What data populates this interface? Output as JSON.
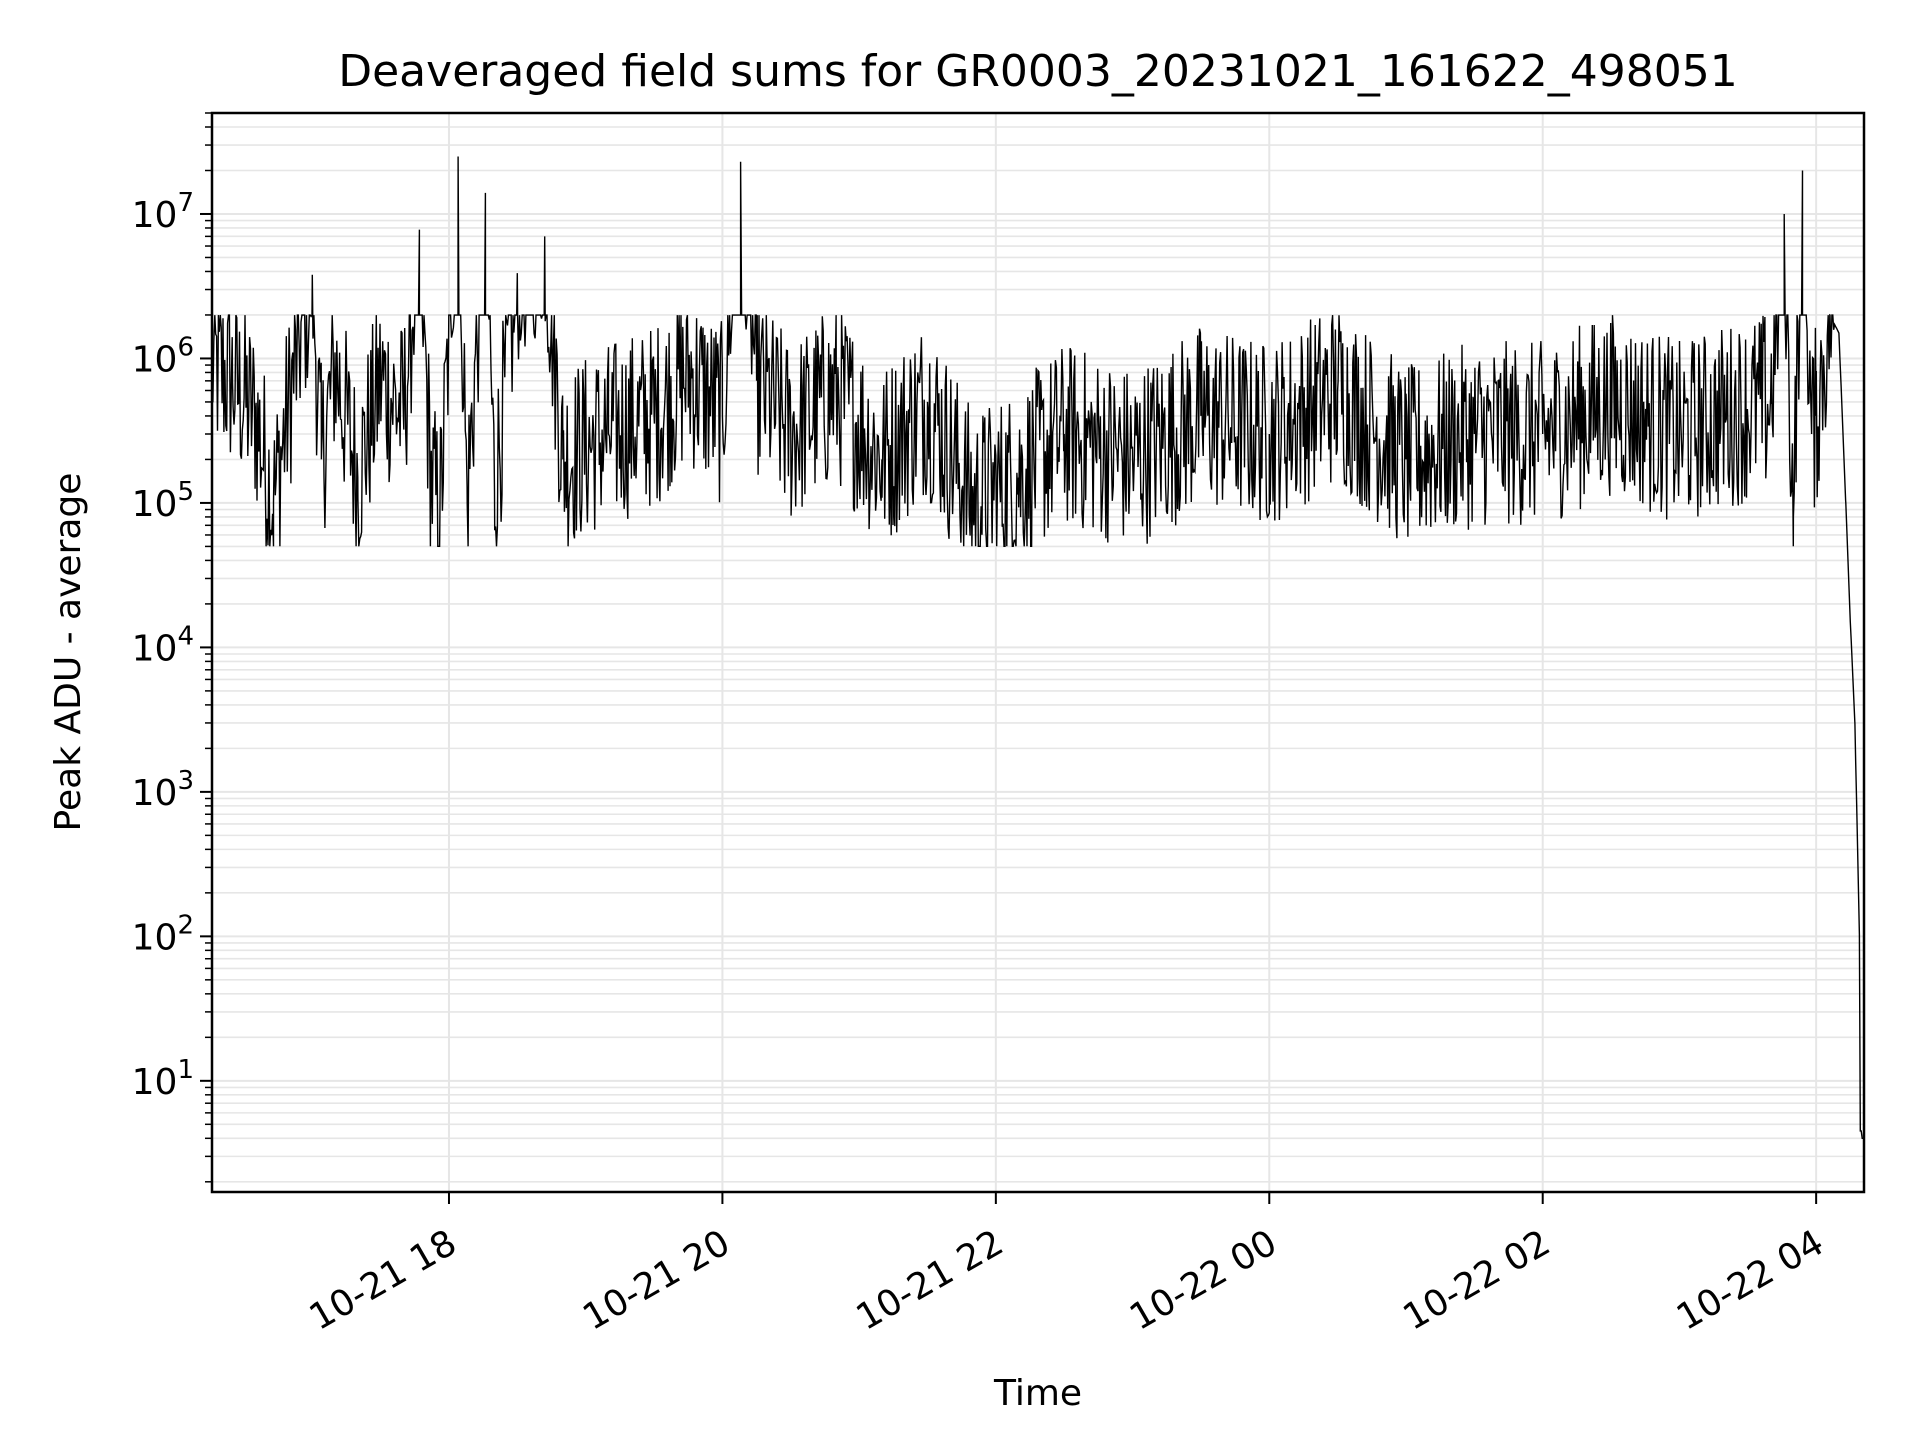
{
  "chart_data": {
    "type": "line",
    "title": "Deaveraged field sums for GR0003_20231021_161622_498051",
    "xlabel": "Time",
    "ylabel": "Peak ADU - average",
    "yscale": "log",
    "grid": true,
    "line_color": "#000000",
    "grid_color": "#e6e6e6",
    "xlim": [
      "2023-10-21 16:16",
      "2023-10-22 04:21"
    ],
    "ylim": [
      1.7,
      50000000
    ],
    "x_ticks": [
      {
        "t": "2023-10-21 18:00",
        "label": "10-21 18"
      },
      {
        "t": "2023-10-21 20:00",
        "label": "10-21 20"
      },
      {
        "t": "2023-10-21 22:00",
        "label": "10-21 22"
      },
      {
        "t": "2023-10-22 00:00",
        "label": "10-22 00"
      },
      {
        "t": "2023-10-22 02:00",
        "label": "10-22 02"
      },
      {
        "t": "2023-10-22 04:00",
        "label": "10-22 04"
      }
    ],
    "y_ticks": [
      {
        "value": 10,
        "base": "10",
        "exp": "1"
      },
      {
        "value": 100,
        "base": "10",
        "exp": "2"
      },
      {
        "value": 1000,
        "base": "10",
        "exp": "3"
      },
      {
        "value": 10000,
        "base": "10",
        "exp": "4"
      },
      {
        "value": 100000,
        "base": "10",
        "exp": "5"
      },
      {
        "value": 1000000,
        "base": "10",
        "exp": "6"
      },
      {
        "value": 10000000,
        "base": "10",
        "exp": "7"
      }
    ],
    "series": [
      {
        "x": [
          "2023-10-21 16:16",
          "2023-10-21 16:25",
          "2023-10-21 16:35",
          "2023-10-21 16:43",
          "2023-10-21 16:52",
          "2023-10-21 17:00",
          "2023-10-21 17:04",
          "2023-10-21 17:10",
          "2023-10-21 17:20",
          "2023-10-21 17:30",
          "2023-10-21 17:40",
          "2023-10-21 17:47",
          "2023-10-21 17:52",
          "2023-10-21 17:56",
          "2023-10-21 18:04",
          "2023-10-21 18:08",
          "2023-10-21 18:16",
          "2023-10-21 18:20",
          "2023-10-21 18:30",
          "2023-10-21 18:42",
          "2023-10-21 18:50",
          "2023-10-21 19:10",
          "2023-10-21 19:30",
          "2023-10-21 19:45",
          "2023-10-21 20:00",
          "2023-10-21 20:08",
          "2023-10-21 20:15",
          "2023-10-21 20:30",
          "2023-10-21 20:50",
          "2023-10-21 21:10",
          "2023-10-21 21:30",
          "2023-10-21 21:50",
          "2023-10-21 22:10",
          "2023-10-21 22:30",
          "2023-10-21 23:00",
          "2023-10-21 23:30",
          "2023-10-22 00:00",
          "2023-10-22 00:30",
          "2023-10-22 01:00",
          "2023-10-22 01:30",
          "2023-10-22 02:00",
          "2023-10-22 02:30",
          "2023-10-22 03:00",
          "2023-10-22 03:20",
          "2023-10-22 03:40",
          "2023-10-22 03:46",
          "2023-10-22 03:50",
          "2023-10-22 03:54",
          "2023-10-22 03:58",
          "2023-10-22 04:00",
          "2023-10-22 04:06",
          "2023-10-22 04:10",
          "2023-10-22 04:13",
          "2023-10-22 04:15",
          "2023-10-22 04:17",
          "2023-10-22 04:19",
          "2023-10-22 04:21"
        ],
        "y": [
          900000,
          700000,
          400000,
          100000,
          800000,
          3800000,
          200000,
          900000,
          150000,
          700000,
          400000,
          7800000,
          150000,
          80000,
          25000000,
          100000,
          14000000,
          120000,
          3900000,
          7000000,
          200000,
          300000,
          400000,
          800000,
          400000,
          23000000,
          700000,
          300000,
          600000,
          200000,
          500000,
          100000,
          150000,
          300000,
          200000,
          400000,
          300000,
          600000,
          200000,
          300000,
          300000,
          500000,
          300000,
          400000,
          500000,
          10000000,
          80000,
          20000000,
          300000,
          400000,
          2000000,
          1500000,
          100000,
          15000,
          3000,
          100,
          4
        ]
      }
    ]
  }
}
